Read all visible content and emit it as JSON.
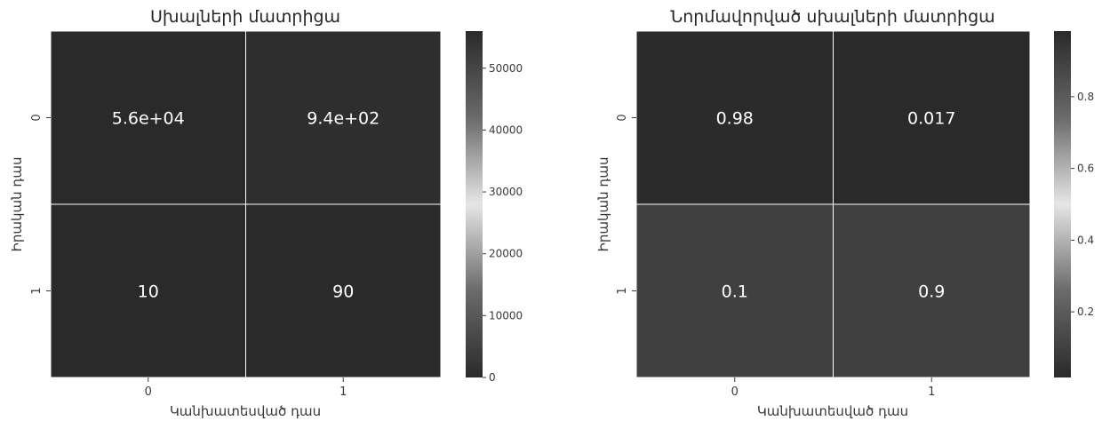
{
  "chart_data": [
    {
      "type": "heatmap",
      "title": "Սխալների մատրիցա",
      "xlabel": "Կանխատեսված դաս",
      "ylabel": "Իրական դաս",
      "x_categories": [
        "0",
        "1"
      ],
      "y_categories": [
        "0",
        "1"
      ],
      "values": [
        [
          56000,
          940
        ],
        [
          10,
          90
        ]
      ],
      "annotations": [
        [
          "5.6e+04",
          "9.4e+02"
        ],
        [
          "10",
          "90"
        ]
      ],
      "colorbar": {
        "range": [
          0,
          56000
        ],
        "ticks": [
          0,
          10000,
          20000,
          30000,
          40000,
          50000
        ],
        "tick_labels": [
          "0",
          "10000",
          "20000",
          "30000",
          "40000",
          "50000"
        ]
      },
      "colors": [
        "#2a2a2a",
        "#6a6a6a",
        "#e6e6e6",
        "#6a6a6a",
        "#2a2a2a"
      ]
    },
    {
      "type": "heatmap",
      "title": "Նորմավորված սխալների մատրիցա",
      "xlabel": "Կանխատեսված դաս",
      "ylabel": "Իրական դաս",
      "x_categories": [
        "0",
        "1"
      ],
      "y_categories": [
        "0",
        "1"
      ],
      "values": [
        [
          0.98,
          0.017
        ],
        [
          0.1,
          0.9
        ]
      ],
      "annotations": [
        [
          "0.98",
          "0.017"
        ],
        [
          "0.1",
          "0.9"
        ]
      ],
      "colorbar": {
        "range": [
          0.017,
          0.983
        ],
        "ticks": [
          0.2,
          0.4,
          0.6,
          0.8
        ],
        "tick_labels": [
          "0.2",
          "0.4",
          "0.6",
          "0.8"
        ]
      },
      "colors": [
        "#2a2a2a",
        "#6a6a6a",
        "#e6e6e6",
        "#6a6a6a",
        "#2a2a2a"
      ]
    }
  ]
}
